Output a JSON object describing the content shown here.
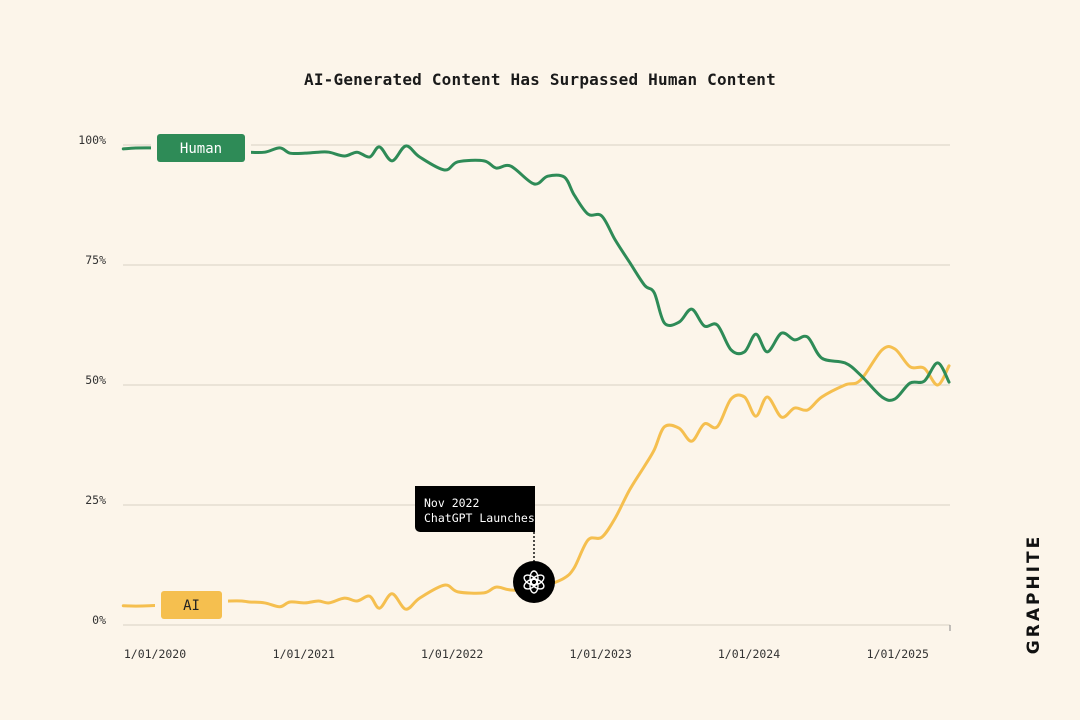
{
  "chart_data": {
    "type": "line",
    "title": "AI-Generated Content Has Surpassed Human Content",
    "xlabel": "",
    "ylabel": "",
    "ylim": [
      0,
      100
    ],
    "y_ticks": [
      "0%",
      "25%",
      "50%",
      "75%",
      "100%"
    ],
    "y_tick_values": [
      0,
      25,
      50,
      75,
      100
    ],
    "x_ticks": [
      "1/01/2020",
      "1/01/2021",
      "1/01/2022",
      "1/01/2023",
      "1/01/2024",
      "1/01/2025"
    ],
    "x_tick_values": [
      "2020-01-01",
      "2021-01-01",
      "2022-01-01",
      "2023-01-01",
      "2024-01-01",
      "2025-01-01"
    ],
    "xlim": [
      "2019-10-15",
      "2025-05-07"
    ],
    "grid": "horizontal",
    "x": [
      "2019-10-15",
      "2019-12-18",
      "2020-07-03",
      "2020-08-20",
      "2020-09-27",
      "2020-11-03",
      "2020-11-28",
      "2021-01-04",
      "2021-02-06",
      "2021-03-04",
      "2021-04-11",
      "2021-05-12",
      "2021-06-12",
      "2021-07-06",
      "2021-08-06",
      "2021-09-09",
      "2021-10-13",
      "2021-12-13",
      "2022-01-15",
      "2022-03-20",
      "2022-04-19",
      "2022-05-25",
      "2022-07-21",
      "2022-08-24",
      "2022-10-04",
      "2022-10-28",
      "2022-12-01",
      "2023-01-04",
      "2023-02-06",
      "2023-03-13",
      "2023-04-19",
      "2023-05-13",
      "2023-06-07",
      "2023-07-13",
      "2023-08-13",
      "2023-09-13",
      "2023-10-15",
      "2023-11-18",
      "2023-12-21",
      "2024-01-18",
      "2024-02-15",
      "2024-03-21",
      "2024-04-22",
      "2024-05-24",
      "2024-06-28",
      "2024-08-24",
      "2024-10-01",
      "2024-11-23",
      "2024-12-25",
      "2025-01-31",
      "2025-03-07",
      "2025-04-09",
      "2025-05-07"
    ],
    "series": [
      {
        "name": "Human",
        "color": "#2e8b57",
        "values": [
          99.2,
          99.4,
          99,
          98.5,
          98.5,
          99.4,
          98.3,
          98.3,
          98.5,
          98.5,
          97.7,
          98.5,
          97.5,
          99.6,
          96.7,
          99.8,
          97.5,
          94.8,
          96.5,
          96.7,
          95.2,
          95.6,
          91.9,
          93.5,
          93.3,
          89.6,
          85.6,
          85.2,
          80.2,
          75.6,
          70.8,
          69.2,
          62.9,
          63.1,
          65.8,
          62.3,
          62.5,
          57.3,
          56.9,
          60.6,
          56.9,
          60.8,
          59.4,
          60,
          55.6,
          54.6,
          52.1,
          47.5,
          47.1,
          50.4,
          50.8,
          54.6,
          50.6
        ]
      },
      {
        "name": "AI",
        "color": "#f5bf4f",
        "values": [
          4,
          4,
          5,
          4.8,
          4.6,
          3.8,
          4.8,
          4.6,
          5,
          4.6,
          5.6,
          5,
          6,
          3.5,
          6.5,
          3.3,
          5.6,
          8.3,
          6.9,
          6.7,
          7.9,
          7.3,
          7.3,
          8.3,
          9.8,
          11.9,
          17.7,
          18.3,
          22.3,
          28.1,
          33.1,
          36.5,
          41.3,
          41,
          38.3,
          41.9,
          41.3,
          47.1,
          47.5,
          43.5,
          47.5,
          43.3,
          45.2,
          44.8,
          47.5,
          50,
          51,
          57.3,
          57.5,
          53.8,
          53.5,
          50,
          54
        ]
      }
    ],
    "annotation": {
      "date": "2022-08-01",
      "value": 7.5,
      "line1": "Nov 2022",
      "line2": "ChatGPT Launches",
      "icon": "openai-logo-icon"
    }
  },
  "logo": "GRAPHITE"
}
